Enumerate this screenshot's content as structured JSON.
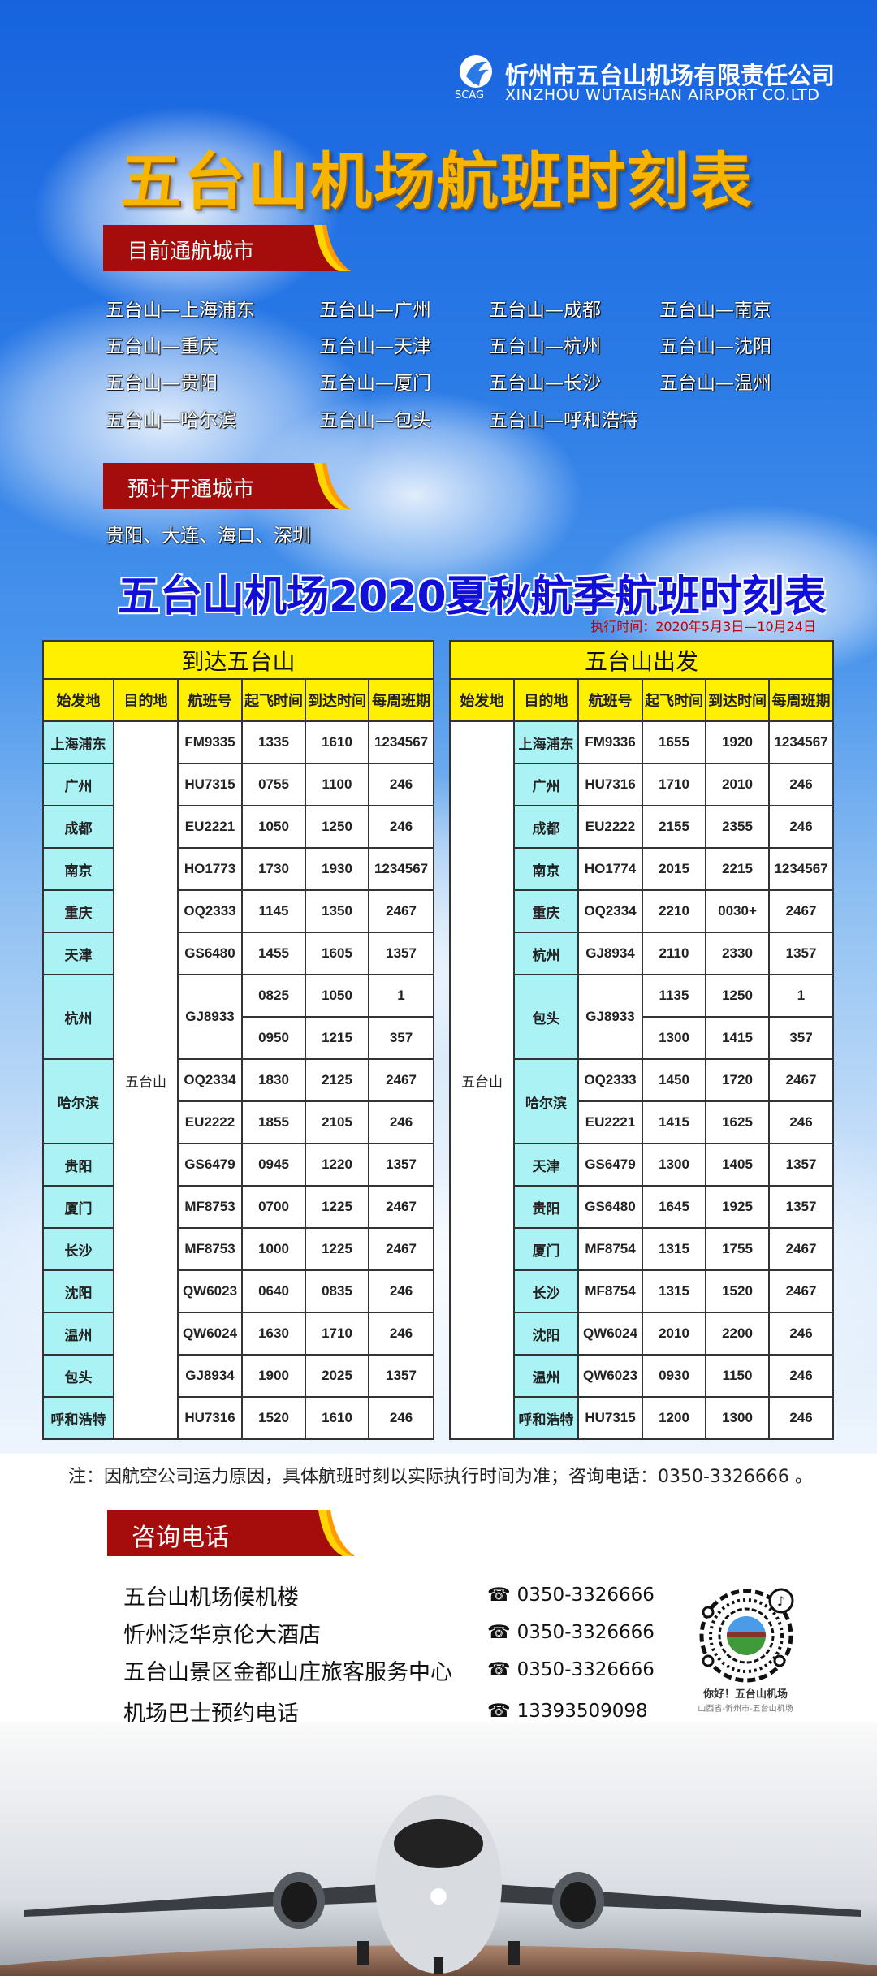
{
  "header": {
    "company_cn": "忻州市五台山机场有限责任公司",
    "company_en": "XINZHOU WUTAISHAN AIRPORT CO.LTD",
    "logo_text": "SCAG",
    "title": "五台山机场航班时刻表"
  },
  "current_routes": {
    "label": "目前通航城市",
    "items": [
      "五台山—上海浦东",
      "五台山—广州",
      "五台山—成都",
      "五台山—南京",
      "五台山—重庆",
      "五台山—天津",
      "五台山—杭州",
      "五台山—沈阳",
      "五台山—贵阳",
      "五台山—厦门",
      "五台山—长沙",
      "五台山—温州",
      "五台山—哈尔滨",
      "五台山—包头",
      "五台山—呼和浩特"
    ]
  },
  "planned_routes": {
    "label": "预计开通城市",
    "text": "贵阳、大连、海口、深圳"
  },
  "schedule": {
    "title": "五台山机场2020夏秋航季航班时刻表",
    "period": "执行时间：2020年5月3日—10月24日",
    "columns": [
      "始发地",
      "目的地",
      "航班号",
      "起飞时间",
      "到达时间",
      "每周班期"
    ],
    "arrival": {
      "title": "到达五台山",
      "destination": "五台山",
      "groups": [
        {
          "city": "上海浦东",
          "flights": [
            {
              "no": "FM9335",
              "times": [
                [
                  "1335",
                  "1610",
                  "1234567"
                ]
              ]
            }
          ]
        },
        {
          "city": "广州",
          "flights": [
            {
              "no": "HU7315",
              "times": [
                [
                  "0755",
                  "1100",
                  "246"
                ]
              ]
            }
          ]
        },
        {
          "city": "成都",
          "flights": [
            {
              "no": "EU2221",
              "times": [
                [
                  "1050",
                  "1250",
                  "246"
                ]
              ]
            }
          ]
        },
        {
          "city": "南京",
          "flights": [
            {
              "no": "HO1773",
              "times": [
                [
                  "1730",
                  "1930",
                  "1234567"
                ]
              ]
            }
          ]
        },
        {
          "city": "重庆",
          "flights": [
            {
              "no": "OQ2333",
              "times": [
                [
                  "1145",
                  "1350",
                  "2467"
                ]
              ]
            }
          ]
        },
        {
          "city": "天津",
          "flights": [
            {
              "no": "GS6480",
              "times": [
                [
                  "1455",
                  "1605",
                  "1357"
                ]
              ]
            }
          ]
        },
        {
          "city": "杭州",
          "flights": [
            {
              "no": "GJ8933",
              "times": [
                [
                  "0825",
                  "1050",
                  "1"
                ],
                [
                  "0950",
                  "1215",
                  "357"
                ]
              ]
            }
          ]
        },
        {
          "city": "哈尔滨",
          "flights": [
            {
              "no": "OQ2334",
              "times": [
                [
                  "1830",
                  "2125",
                  "2467"
                ]
              ]
            },
            {
              "no": "EU2222",
              "times": [
                [
                  "1855",
                  "2105",
                  "246"
                ]
              ]
            }
          ]
        },
        {
          "city": "贵阳",
          "flights": [
            {
              "no": "GS6479",
              "times": [
                [
                  "0945",
                  "1220",
                  "1357"
                ]
              ]
            }
          ]
        },
        {
          "city": "厦门",
          "flights": [
            {
              "no": "MF8753",
              "times": [
                [
                  "0700",
                  "1225",
                  "2467"
                ]
              ]
            }
          ]
        },
        {
          "city": "长沙",
          "flights": [
            {
              "no": "MF8753",
              "times": [
                [
                  "1000",
                  "1225",
                  "2467"
                ]
              ]
            }
          ]
        },
        {
          "city": "沈阳",
          "flights": [
            {
              "no": "QW6023",
              "times": [
                [
                  "0640",
                  "0835",
                  "246"
                ]
              ]
            }
          ]
        },
        {
          "city": "温州",
          "flights": [
            {
              "no": "QW6024",
              "times": [
                [
                  "1630",
                  "1710",
                  "246"
                ]
              ]
            }
          ]
        },
        {
          "city": "包头",
          "flights": [
            {
              "no": "GJ8934",
              "times": [
                [
                  "1900",
                  "2025",
                  "1357"
                ]
              ]
            }
          ]
        },
        {
          "city": "呼和浩特",
          "flights": [
            {
              "no": "HU7316",
              "times": [
                [
                  "1520",
                  "1610",
                  "246"
                ]
              ]
            }
          ]
        }
      ]
    },
    "departure": {
      "title": "五台山出发",
      "origin": "五台山",
      "groups": [
        {
          "city": "上海浦东",
          "flights": [
            {
              "no": "FM9336",
              "times": [
                [
                  "1655",
                  "1920",
                  "1234567"
                ]
              ]
            }
          ]
        },
        {
          "city": "广州",
          "flights": [
            {
              "no": "HU7316",
              "times": [
                [
                  "1710",
                  "2010",
                  "246"
                ]
              ]
            }
          ]
        },
        {
          "city": "成都",
          "flights": [
            {
              "no": "EU2222",
              "times": [
                [
                  "2155",
                  "2355",
                  "246"
                ]
              ]
            }
          ]
        },
        {
          "city": "南京",
          "flights": [
            {
              "no": "HO1774",
              "times": [
                [
                  "2015",
                  "2215",
                  "1234567"
                ]
              ]
            }
          ]
        },
        {
          "city": "重庆",
          "flights": [
            {
              "no": "OQ2334",
              "times": [
                [
                  "2210",
                  "0030+",
                  "2467"
                ]
              ]
            }
          ]
        },
        {
          "city": "杭州",
          "flights": [
            {
              "no": "GJ8934",
              "times": [
                [
                  "2110",
                  "2330",
                  "1357"
                ]
              ]
            }
          ]
        },
        {
          "city": "包头",
          "flights": [
            {
              "no": "GJ8933",
              "times": [
                [
                  "1135",
                  "1250",
                  "1"
                ],
                [
                  "1300",
                  "1415",
                  "357"
                ]
              ]
            }
          ]
        },
        {
          "city": "哈尔滨",
          "flights": [
            {
              "no": "OQ2333",
              "times": [
                [
                  "1450",
                  "1720",
                  "2467"
                ]
              ]
            },
            {
              "no": "EU2221",
              "times": [
                [
                  "1415",
                  "1625",
                  "246"
                ]
              ]
            }
          ]
        },
        {
          "city": "天津",
          "flights": [
            {
              "no": "GS6479",
              "times": [
                [
                  "1300",
                  "1405",
                  "1357"
                ]
              ]
            }
          ]
        },
        {
          "city": "贵阳",
          "flights": [
            {
              "no": "GS6480",
              "times": [
                [
                  "1645",
                  "1925",
                  "1357"
                ]
              ]
            }
          ]
        },
        {
          "city": "厦门",
          "flights": [
            {
              "no": "MF8754",
              "times": [
                [
                  "1315",
                  "1755",
                  "2467"
                ]
              ]
            }
          ]
        },
        {
          "city": "长沙",
          "flights": [
            {
              "no": "MF8754",
              "times": [
                [
                  "1315",
                  "1520",
                  "2467"
                ]
              ]
            }
          ]
        },
        {
          "city": "沈阳",
          "flights": [
            {
              "no": "QW6024",
              "times": [
                [
                  "2010",
                  "2200",
                  "246"
                ]
              ]
            }
          ]
        },
        {
          "city": "温州",
          "flights": [
            {
              "no": "QW6023",
              "times": [
                [
                  "0930",
                  "1150",
                  "246"
                ]
              ]
            }
          ]
        },
        {
          "city": "呼和浩特",
          "flights": [
            {
              "no": "HU7315",
              "times": [
                [
                  "1200",
                  "1300",
                  "246"
                ]
              ]
            }
          ]
        }
      ]
    },
    "note": "注：因航空公司运力原因，具体航班时刻以实际执行时间为准；咨询电话：0350-3326666 。"
  },
  "contacts": {
    "label": "咨询电话",
    "items": [
      {
        "name": "五台山机场候机楼",
        "phone": "0350-3326666"
      },
      {
        "name": "忻州泛华京伦大酒店",
        "phone": "0350-3326666"
      },
      {
        "name": "五台山景区金都山庄旅客服务中心",
        "phone": "0350-3326666"
      },
      {
        "name": "机场巴士预约电话",
        "phone": "13393509098"
      }
    ],
    "phone_icon": "☎",
    "qr_caption": "你好！五台山机场",
    "qr_subcaption": "山西省-忻州市-五台山机场"
  },
  "colors": {
    "badge_red": "#a50c0c",
    "table_header": "#fff000",
    "city_cell": "#aaf2f4",
    "title_gold": "#f7b500",
    "title_blue": "#1010d8"
  }
}
